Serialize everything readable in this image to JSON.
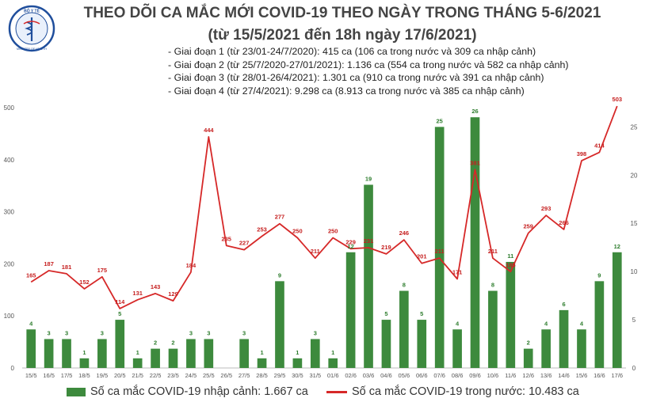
{
  "logo": {
    "text_top": "BỘ Y TẾ",
    "text_bottom": "MINISTRY OF HEALTH"
  },
  "title_line1": "THEO DÕI CA MẮC MỚI COVID-19 THEO NGÀY TRONG THÁNG 5-6/2021",
  "title_line2": "(từ 15/5/2021 đến 18h ngày 17/6/2021)",
  "phases": [
    "- Giai đoạn 1 (từ 23/01-24/7/2020): 415 ca (106 ca trong nước và 309 ca nhập cảnh)",
    "- Giai đoạn 2 (từ 25/7/2020-27/01/2021): 1.136 ca (554 ca trong nước và 582 ca nhập cảnh)",
    "- Giai đoạn 3 (từ 28/01-26/4/2021): 1.301 ca (910 ca trong nước và 391 ca nhập cảnh)",
    "- Giai đoạn 4 (từ 27/4/2021): 9.298 ca (8.913 ca trong nước và 385 ca nhập cảnh)"
  ],
  "legend": {
    "bar_label": "Số ca mắc COVID-19 nhập cảnh: 1.667 ca",
    "line_label": "Số ca mắc COVID-19 trong nước: 10.483 ca"
  },
  "colors": {
    "bar": "#3d8a3d",
    "line": "#d62828",
    "line_label": "#c62020",
    "bar_label": "#2e7d2e",
    "axis": "#555555"
  },
  "chart_data": {
    "type": "bar",
    "categories": [
      "15/5",
      "16/5",
      "17/5",
      "18/5",
      "19/5",
      "20/5",
      "21/5",
      "22/5",
      "23/5",
      "24/5",
      "25/5",
      "26/5",
      "27/5",
      "28/5",
      "29/5",
      "30/5",
      "31/5",
      "01/6",
      "02/6",
      "03/6",
      "04/6",
      "05/6",
      "06/6",
      "07/6",
      "08/6",
      "09/6",
      "10/6",
      "11/6",
      "12/6",
      "13/6",
      "14/6",
      "15/6",
      "16/6",
      "17/6"
    ],
    "series": [
      {
        "name": "Số ca mắc COVID-19 nhập cảnh: 1.667 ca",
        "type": "bar",
        "axis": "right",
        "values": [
          4,
          3,
          3,
          1,
          3,
          5,
          1,
          2,
          2,
          3,
          3,
          0,
          3,
          1,
          9,
          1,
          3,
          1,
          12,
          19,
          5,
          8,
          5,
          25,
          4,
          26,
          8,
          11,
          2,
          4,
          6,
          4,
          9,
          12
        ],
        "labels": [
          "4",
          "3",
          "3",
          "1",
          "3",
          "5",
          "1",
          "2",
          "2",
          "3",
          "3",
          "",
          "3",
          "1",
          "9",
          "1",
          "3",
          "1",
          "12",
          "19",
          "5",
          "8",
          "5",
          "25",
          "4",
          "26",
          "8",
          "11",
          "2",
          "4",
          "6",
          "4",
          "9",
          "12"
        ]
      },
      {
        "name": "Số ca mắc COVID-19 trong nước: 10.483 ca",
        "type": "line",
        "axis": "left",
        "values": [
          165,
          187,
          181,
          152,
          175,
          114,
          131,
          143,
          129,
          184,
          444,
          235,
          227,
          253,
          277,
          250,
          211,
          250,
          229,
          231,
          219,
          246,
          201,
          211,
          171,
          381,
          211,
          185,
          259,
          293,
          266,
          398,
          414,
          503
        ]
      }
    ],
    "y_left": {
      "min": 0,
      "max": 500,
      "ticks": [
        0,
        100,
        200,
        300,
        400,
        500
      ]
    },
    "y_right": {
      "min": 0,
      "max": 27,
      "ticks": [
        0,
        5,
        10,
        15,
        20,
        25
      ]
    },
    "grid": false,
    "legend_position": "bottom"
  }
}
